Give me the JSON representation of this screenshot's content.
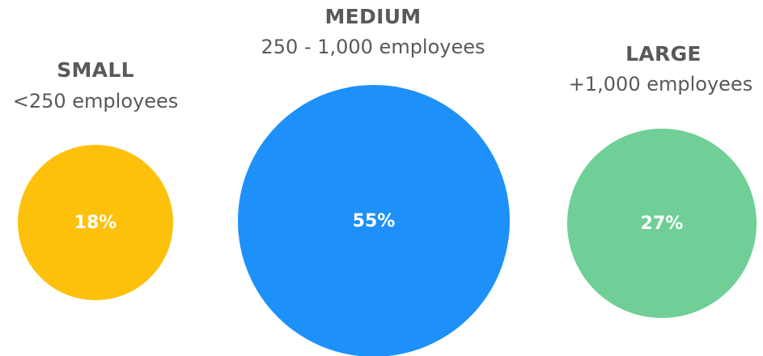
{
  "chart_data": {
    "type": "bubble",
    "title": "",
    "series": [
      {
        "category": "SMALL",
        "description": "<250 employees",
        "value": 18,
        "value_label": "18%",
        "color": "#FEC10B"
      },
      {
        "category": "MEDIUM",
        "description": "250 - 1,000 employees",
        "value": 55,
        "value_label": "55%",
        "color": "#1E90FA"
      },
      {
        "category": "LARGE",
        "description": "+1,000 employees",
        "value": 27,
        "value_label": "27%",
        "color": "#6FCF96"
      }
    ]
  }
}
